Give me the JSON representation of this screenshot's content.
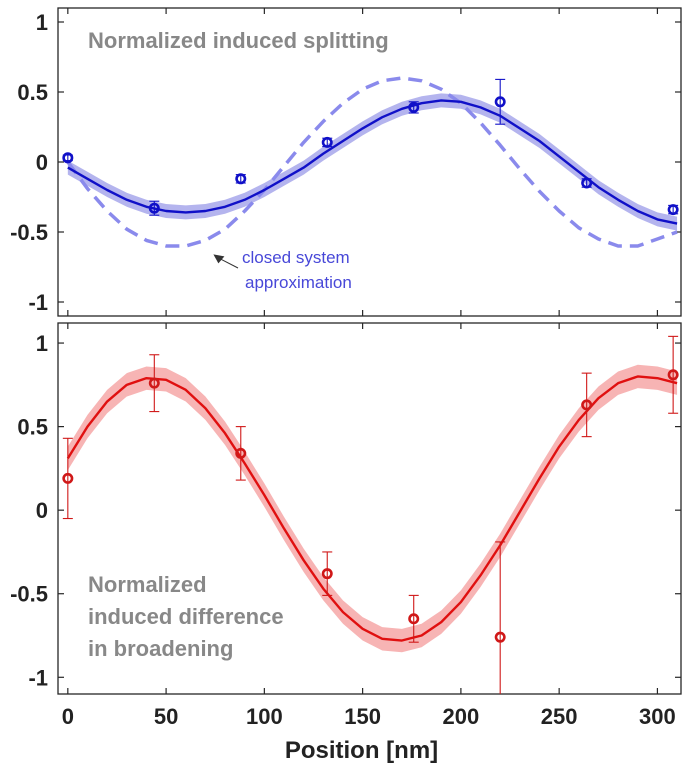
{
  "chart_data": [
    {
      "type": "line",
      "title": "Normalized induced splitting",
      "xlabel": "",
      "ylabel": "",
      "xlim": [
        -5,
        312
      ],
      "ylim": [
        -1.1,
        1.1
      ],
      "y_ticks": [
        1,
        0.5,
        0,
        -0.5,
        -1
      ],
      "y_tick_labels": [
        "1",
        "0.5",
        "0",
        "-0.5",
        "-1"
      ],
      "grid": false,
      "colors": {
        "data": "#1010c8",
        "fit": "#1010c8",
        "band": "#b4b4ee",
        "closed": "#8a8aec"
      },
      "series": [
        {
          "kind": "measured",
          "x": [
            0,
            44,
            88,
            132,
            176,
            220,
            264,
            308
          ],
          "y": [
            0.03,
            -0.33,
            -0.12,
            0.14,
            0.39,
            0.43,
            -0.15,
            -0.34
          ],
          "err": [
            0.02,
            0.05,
            0.03,
            0.03,
            0.04,
            0.16,
            0.03,
            0.03
          ]
        },
        {
          "kind": "fit",
          "x": [
            0,
            10,
            20,
            30,
            40,
            50,
            60,
            70,
            80,
            90,
            100,
            110,
            120,
            130,
            140,
            150,
            160,
            170,
            180,
            190,
            200,
            210,
            220,
            230,
            240,
            250,
            260,
            270,
            280,
            290,
            300,
            310
          ],
          "y": [
            -0.04,
            -0.12,
            -0.2,
            -0.27,
            -0.32,
            -0.35,
            -0.36,
            -0.35,
            -0.32,
            -0.27,
            -0.2,
            -0.12,
            -0.04,
            0.06,
            0.15,
            0.24,
            0.32,
            0.38,
            0.42,
            0.44,
            0.43,
            0.39,
            0.33,
            0.24,
            0.15,
            0.04,
            -0.07,
            -0.18,
            -0.27,
            -0.35,
            -0.41,
            -0.44
          ],
          "band": 0.05
        },
        {
          "kind": "closed-system",
          "style": "dashed",
          "x": [
            0,
            10,
            20,
            30,
            40,
            50,
            60,
            70,
            80,
            90,
            100,
            110,
            120,
            130,
            140,
            150,
            160,
            170,
            180,
            190,
            200,
            210,
            220,
            230,
            240,
            250,
            260,
            270,
            280,
            290,
            300,
            310
          ],
          "y": [
            0.0,
            -0.19,
            -0.35,
            -0.48,
            -0.56,
            -0.6,
            -0.6,
            -0.56,
            -0.48,
            -0.35,
            -0.2,
            -0.03,
            0.14,
            0.29,
            0.42,
            0.52,
            0.58,
            0.6,
            0.58,
            0.52,
            0.42,
            0.28,
            0.12,
            -0.05,
            -0.21,
            -0.35,
            -0.47,
            -0.55,
            -0.6,
            -0.6,
            -0.55,
            -0.5
          ]
        }
      ],
      "annotation": {
        "lines": [
          "closed system",
          "approximation"
        ],
        "arrow_target": {
          "x": 70,
          "y": -0.66
        }
      }
    },
    {
      "type": "line",
      "title": "Normalized induced difference in broadening",
      "title_lines": [
        "Normalized",
        "induced difference",
        "in broadening"
      ],
      "xlabel": "Position [nm]",
      "ylabel": "",
      "xlim": [
        -5,
        312
      ],
      "ylim": [
        -1.1,
        1.12
      ],
      "x_ticks": [
        0,
        50,
        100,
        150,
        200,
        250,
        300
      ],
      "x_tick_labels": [
        "0",
        "50",
        "100",
        "150",
        "200",
        "250",
        "300"
      ],
      "y_ticks": [
        1,
        0.5,
        0,
        -0.5,
        -1
      ],
      "y_tick_labels": [
        "1",
        "0.5",
        "0",
        "-0.5",
        "-1"
      ],
      "grid": false,
      "colors": {
        "data": "#d01818",
        "fit": "#e01010",
        "band": "#f7b4b4"
      },
      "series": [
        {
          "kind": "measured",
          "x": [
            0,
            44,
            88,
            132,
            176,
            220,
            264,
            308
          ],
          "y": [
            0.19,
            0.76,
            0.34,
            -0.38,
            -0.65,
            -0.76,
            0.63,
            0.81
          ],
          "err": [
            0.24,
            0.17,
            0.16,
            0.13,
            0.14,
            0.57,
            0.19,
            0.23
          ]
        },
        {
          "kind": "fit",
          "x": [
            0,
            10,
            20,
            30,
            40,
            50,
            60,
            70,
            80,
            90,
            100,
            110,
            120,
            130,
            140,
            150,
            160,
            170,
            180,
            190,
            200,
            210,
            220,
            230,
            240,
            250,
            260,
            270,
            280,
            290,
            300,
            310
          ],
          "y": [
            0.31,
            0.5,
            0.65,
            0.75,
            0.79,
            0.78,
            0.72,
            0.61,
            0.46,
            0.28,
            0.09,
            -0.11,
            -0.3,
            -0.47,
            -0.61,
            -0.71,
            -0.77,
            -0.78,
            -0.75,
            -0.67,
            -0.55,
            -0.39,
            -0.21,
            -0.01,
            0.19,
            0.38,
            0.54,
            0.67,
            0.76,
            0.8,
            0.79,
            0.76
          ],
          "band": 0.07
        }
      ]
    }
  ]
}
